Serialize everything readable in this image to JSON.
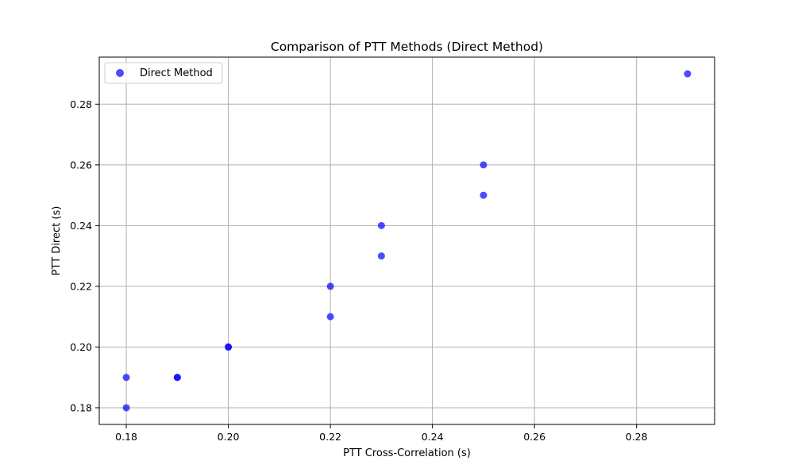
{
  "colors": {
    "point": "#0000ff",
    "grid": "#b0b0b0",
    "axis": "#000000",
    "background": "#ffffff",
    "legend_border": "#cccccc"
  },
  "chart_data": {
    "type": "scatter",
    "title": "Comparison of PTT Methods (Direct Method)",
    "xlabel": "PTT Cross-Correlation (s)",
    "ylabel": "PTT Direct (s)",
    "xlim": [
      0.1747,
      0.2953
    ],
    "ylim": [
      0.1745,
      0.2955
    ],
    "xticks": [
      0.18,
      0.2,
      0.22,
      0.24,
      0.26,
      0.28
    ],
    "xtick_labels": [
      "0.18",
      "0.20",
      "0.22",
      "0.24",
      "0.26",
      "0.28"
    ],
    "yticks": [
      0.18,
      0.2,
      0.22,
      0.24,
      0.26,
      0.28
    ],
    "ytick_labels": [
      "0.18",
      "0.20",
      "0.22",
      "0.24",
      "0.26",
      "0.28"
    ],
    "grid": true,
    "legend_position": "top-left",
    "series": [
      {
        "name": "Direct Method",
        "color": "#0000ff",
        "points": [
          {
            "x": 0.18,
            "y": 0.18
          },
          {
            "x": 0.18,
            "y": 0.19
          },
          {
            "x": 0.19,
            "y": 0.19
          },
          {
            "x": 0.19,
            "y": 0.19
          },
          {
            "x": 0.2,
            "y": 0.2
          },
          {
            "x": 0.2,
            "y": 0.2
          },
          {
            "x": 0.22,
            "y": 0.21
          },
          {
            "x": 0.22,
            "y": 0.22
          },
          {
            "x": 0.23,
            "y": 0.23
          },
          {
            "x": 0.23,
            "y": 0.24
          },
          {
            "x": 0.25,
            "y": 0.25
          },
          {
            "x": 0.25,
            "y": 0.26
          },
          {
            "x": 0.29,
            "y": 0.29
          }
        ]
      }
    ]
  }
}
